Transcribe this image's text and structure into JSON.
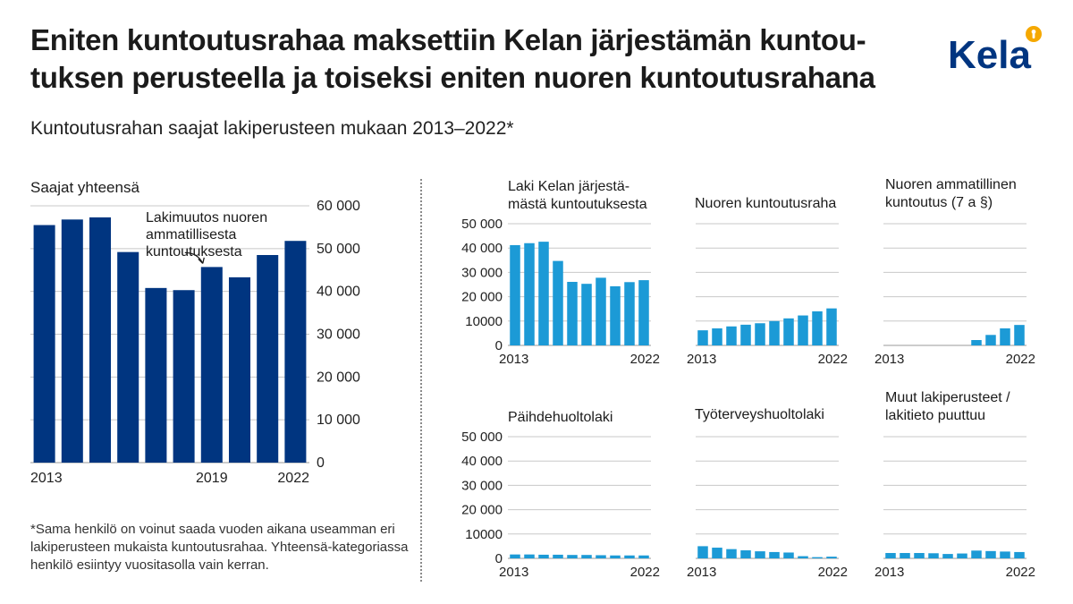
{
  "page": {
    "title_line1": "Eniten kuntoutusrahaa maksettiin Kelan järjestämän kuntou-",
    "title_line2": "tuksen perusteella ja toiseksi eniten nuoren kuntoutusrahana",
    "subtitle": "Kuntoutusrahan saajat lakiperusteen mukaan 2013–2022*",
    "footnote": "*Sama henkilö on voinut saada vuoden aikana useamman eri lakiperusteen mukaista kuntoutusrahaa. Yhteensä-kategoriassa henkilö esiintyy vuositasolla vain kerran.",
    "logo_text": "Kela",
    "logo_icon": "kela-logo-icon"
  },
  "colors": {
    "total_bar": "#003580",
    "small_bar": "#1c9ad6",
    "grid": "#c8c8c8",
    "logo": "#003580",
    "logo_accent": "#f5a800"
  },
  "chart_data": [
    {
      "id": "total",
      "type": "bar",
      "title": "Saajat yhteensä",
      "x": [
        2013,
        2014,
        2015,
        2016,
        2017,
        2018,
        2019,
        2020,
        2021,
        2022
      ],
      "values": [
        55500,
        56800,
        57300,
        49200,
        40800,
        40300,
        45700,
        43300,
        48500,
        51800
      ],
      "x_tick_labels": [
        "2013",
        "2019",
        "2022"
      ],
      "y_tick_labels": [
        "0",
        "10 000",
        "20 000",
        "30 000",
        "40 000",
        "50 000",
        "60 000"
      ],
      "ylim": [
        0,
        60000
      ],
      "y_axis_side": "right",
      "grid": true,
      "annotation": {
        "lines": [
          "Lakimuutos nuoren",
          "ammatillisesta",
          "kuntoutuksesta"
        ],
        "points_to": 2019
      }
    },
    {
      "id": "kela",
      "type": "bar",
      "title_lines": [
        "Laki Kelan järjestä-",
        "mästä kuntoutuksesta"
      ],
      "x": [
        2013,
        2014,
        2015,
        2016,
        2017,
        2018,
        2019,
        2020,
        2021,
        2022
      ],
      "values": [
        41200,
        42000,
        42600,
        34700,
        26100,
        25300,
        27800,
        24300,
        26000,
        26800
      ],
      "x_tick_labels": [
        "2013",
        "2022"
      ],
      "y_tick_labels": [
        "0",
        "10000",
        "20 000",
        "30 000",
        "40 000",
        "50 000"
      ],
      "ylim": [
        0,
        50000
      ],
      "grid": true
    },
    {
      "id": "nuoren",
      "type": "bar",
      "title_lines": [
        "Nuoren kuntoutusraha"
      ],
      "x": [
        2013,
        2014,
        2015,
        2016,
        2017,
        2018,
        2019,
        2020,
        2021,
        2022
      ],
      "values": [
        6200,
        7000,
        7800,
        8500,
        9100,
        10000,
        11100,
        12300,
        14000,
        15200
      ],
      "x_tick_labels": [
        "2013",
        "2022"
      ],
      "ylim": [
        0,
        50000
      ],
      "grid": true
    },
    {
      "id": "nuoren-amm",
      "type": "bar",
      "title_lines": [
        "Nuoren ammatillinen",
        "kuntoutus (7 a §)"
      ],
      "x": [
        2013,
        2014,
        2015,
        2016,
        2017,
        2018,
        2019,
        2020,
        2021,
        2022
      ],
      "values": [
        0,
        0,
        0,
        0,
        0,
        0,
        2200,
        4300,
        7000,
        8400
      ],
      "x_tick_labels": [
        "2013",
        "2022"
      ],
      "ylim": [
        0,
        50000
      ],
      "grid": true
    },
    {
      "id": "paihde",
      "type": "bar",
      "title_lines": [
        "Päihdehuoltolaki"
      ],
      "x": [
        2013,
        2014,
        2015,
        2016,
        2017,
        2018,
        2019,
        2020,
        2021,
        2022
      ],
      "values": [
        1600,
        1600,
        1500,
        1500,
        1400,
        1400,
        1300,
        1200,
        1200,
        1200
      ],
      "x_tick_labels": [
        "2013",
        "2022"
      ],
      "y_tick_labels": [
        "0",
        "10000",
        "20 000",
        "30 000",
        "40 000",
        "50 000"
      ],
      "ylim": [
        0,
        50000
      ],
      "grid": true
    },
    {
      "id": "tyoterveys",
      "type": "bar",
      "title_lines": [
        "Työterveyshuoltolaki"
      ],
      "x": [
        2013,
        2014,
        2015,
        2016,
        2017,
        2018,
        2019,
        2020,
        2021,
        2022
      ],
      "values": [
        5000,
        4400,
        3800,
        3300,
        2900,
        2600,
        2400,
        900,
        500,
        700
      ],
      "x_tick_labels": [
        "2013",
        "2022"
      ],
      "ylim": [
        0,
        50000
      ],
      "grid": true
    },
    {
      "id": "muut",
      "type": "bar",
      "title_lines": [
        "Muut lakiperusteet /",
        "lakitieto puuttuu"
      ],
      "x": [
        2013,
        2014,
        2015,
        2016,
        2017,
        2018,
        2019,
        2020,
        2021,
        2022
      ],
      "values": [
        2200,
        2200,
        2200,
        2100,
        1800,
        2000,
        3200,
        3000,
        2800,
        2600
      ],
      "x_tick_labels": [
        "2013",
        "2022"
      ],
      "ylim": [
        0,
        50000
      ],
      "grid": true
    }
  ]
}
